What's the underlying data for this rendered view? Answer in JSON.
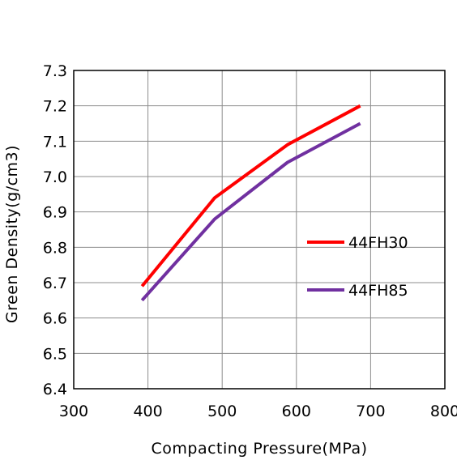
{
  "chart_data": {
    "type": "line",
    "title": "",
    "xlabel": "Compacting Pressure(MPa)",
    "ylabel": "Green  Density(g/cm3)",
    "xlim": [
      300,
      800
    ],
    "ylim": [
      6.4,
      7.3
    ],
    "xticks": [
      "300",
      "400",
      "500",
      "600",
      "700",
      "800"
    ],
    "yticks": [
      "6.4",
      "6.5",
      "6.6",
      "6.7",
      "6.8",
      "6.9",
      "7.0",
      "7.1",
      "7.2",
      "7.3"
    ],
    "grid": true,
    "legend_position": "right",
    "series": [
      {
        "name": "44FH30",
        "color": "#ff0000",
        "x": [
          392,
          490,
          588,
          686
        ],
        "y": [
          6.69,
          6.94,
          7.09,
          7.2
        ]
      },
      {
        "name": "44FH85",
        "color": "#7030a0",
        "x": [
          392,
          490,
          588,
          686
        ],
        "y": [
          6.65,
          6.88,
          7.04,
          7.15
        ]
      }
    ]
  }
}
